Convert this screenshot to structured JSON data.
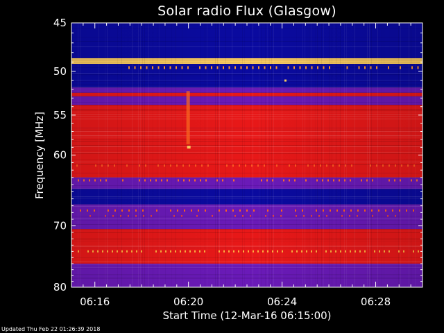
{
  "chart_data": {
    "type": "heatmap",
    "title": "Solar radio Flux (Glasgow)",
    "xlabel": "Start Time (12-Mar-16 06:15:00)",
    "ylabel": "Frequency [MHz]",
    "x_ticks": [
      "06:16",
      "06:20",
      "06:24",
      "06:28"
    ],
    "x_tick_minutes": [
      1,
      5,
      9,
      13
    ],
    "xlim_minutes": [
      0,
      15
    ],
    "y_ticks": [
      45,
      50,
      55,
      60,
      70,
      80
    ],
    "ylim": [
      45,
      80
    ],
    "y_scale": "log",
    "colors": {
      "background": "#000000",
      "low": "#0a0aa0",
      "mid": "#6a1ab8",
      "high": "#e81818",
      "peak": "#ffd060"
    },
    "bands": [
      {
        "from": 45.0,
        "to": 48.6,
        "level": "low"
      },
      {
        "from": 48.6,
        "to": 49.2,
        "level": "peak"
      },
      {
        "from": 49.2,
        "to": 51.8,
        "level": "low"
      },
      {
        "from": 51.8,
        "to": 52.4,
        "level": "mid"
      },
      {
        "from": 52.4,
        "to": 52.8,
        "level": "high"
      },
      {
        "from": 52.8,
        "to": 53.8,
        "level": "mid"
      },
      {
        "from": 53.8,
        "to": 63.0,
        "level": "high"
      },
      {
        "from": 63.0,
        "to": 64.6,
        "level": "mid"
      },
      {
        "from": 64.6,
        "to": 66.8,
        "level": "low"
      },
      {
        "from": 66.8,
        "to": 70.5,
        "level": "mid"
      },
      {
        "from": 70.5,
        "to": 76.0,
        "level": "high"
      },
      {
        "from": 76.0,
        "to": 80.0,
        "level": "mid"
      }
    ],
    "burst_time_minutes": 5
  },
  "footer": {
    "updated": "Updated Thu Feb 22 01:26:39 2018"
  }
}
